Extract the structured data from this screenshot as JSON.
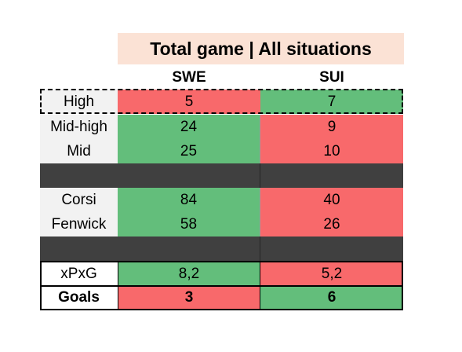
{
  "title": "Total game | All situations",
  "columns": [
    "SWE",
    "SUI"
  ],
  "colors": {
    "good": "#63be7b",
    "bad": "#f8696b",
    "separator": "#404040",
    "title_bg": "#fbe2d5",
    "label_bg": "#f2f2f2"
  },
  "rows": {
    "high": {
      "label": "High",
      "swe": "5",
      "sui": "7"
    },
    "midhigh": {
      "label": "Mid-high",
      "swe": "24",
      "sui": "9"
    },
    "mid": {
      "label": "Mid",
      "swe": "25",
      "sui": "10"
    },
    "corsi": {
      "label": "Corsi",
      "swe": "84",
      "sui": "40"
    },
    "fenwick": {
      "label": "Fenwick",
      "swe": "58",
      "sui": "26"
    },
    "xpxg": {
      "label": "xPxG",
      "swe": "8,2",
      "sui": "5,2"
    },
    "goals": {
      "label": "Goals",
      "swe": "3",
      "sui": "6"
    }
  }
}
